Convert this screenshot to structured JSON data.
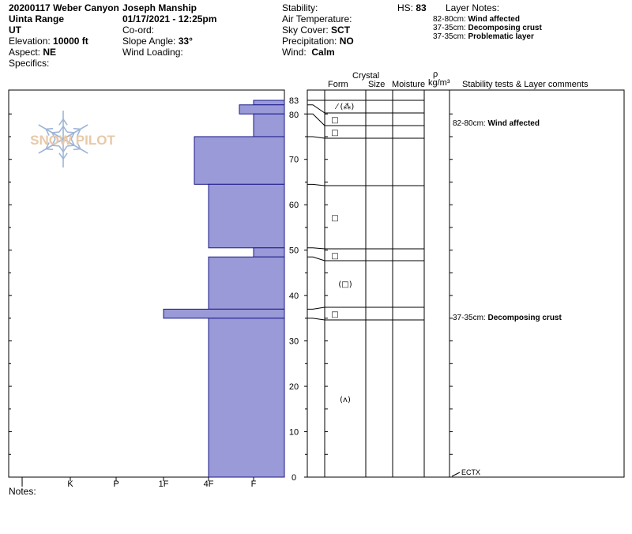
{
  "header": {
    "title": "20200117 Weber Canyon",
    "range": "Uinta Range",
    "state": "UT",
    "elevation_label": "Elevation:",
    "elevation_value": "10000 ft",
    "aspect_label": "Aspect:",
    "aspect_value": "NE",
    "specifics_label": "Specifics:",
    "observer": "Joseph Manship",
    "datetime": "01/17/2021 - 12:25pm",
    "coord_label": "Co-ord:",
    "slope_label": "Slope Angle:",
    "slope_value": "33°",
    "wind_loading_label": "Wind Loading:",
    "stability_label": "Stability:",
    "air_temp_label": "Air Temperature:",
    "sky_label": "Sky Cover:",
    "sky_value": "SCT",
    "precip_label": "Precipitation:",
    "precip_value": "NO",
    "wind_label": "Wind:",
    "wind_value": "Calm",
    "hs_label": "HS:",
    "hs_value": "83",
    "layer_notes_label": "Layer Notes:",
    "layer_notes": [
      {
        "range": "82-80cm:",
        "text": "Wind affected"
      },
      {
        "range": "37-35cm:",
        "text": "Decomposing crust"
      },
      {
        "range": "37-35cm:",
        "text": "Problematic layer"
      }
    ]
  },
  "logo": {
    "text": "SNOW PILOT",
    "color": "#e8c9a8",
    "flake_color": "#9fb6d6"
  },
  "columns": {
    "crystal": "Crystal",
    "form": "Form",
    "size": "Size",
    "moisture": "Moisture",
    "density_symbol": "ρ",
    "density_unit": "kg/m³",
    "stability": "Stability tests & Layer comments"
  },
  "notes_label": "Notes:",
  "chart_data": {
    "type": "bar",
    "title": "",
    "xlabel": "",
    "ylabel": "",
    "ylim": [
      0,
      83
    ],
    "hardness_categories": [
      "I",
      "K",
      "P",
      "1F",
      "4F",
      "F"
    ],
    "depth_ticks": [
      0,
      10,
      20,
      30,
      40,
      50,
      60,
      70,
      80,
      83
    ],
    "bar_color": "#9a9ad8",
    "layers": [
      {
        "top": 83,
        "bottom": 82,
        "hardness": "F-"
      },
      {
        "top": 82,
        "bottom": 80,
        "hardness": "4F+"
      },
      {
        "top": 80,
        "bottom": 75,
        "hardness": "F"
      },
      {
        "top": 75,
        "bottom": 64.5,
        "hardness": "1F+"
      },
      {
        "top": 64.5,
        "bottom": 50.5,
        "hardness": "4F"
      },
      {
        "top": 50.5,
        "bottom": 48.5,
        "hardness": "F"
      },
      {
        "top": 48.5,
        "bottom": 37,
        "hardness": "4F"
      },
      {
        "top": 37,
        "bottom": 35,
        "hardness": "1F"
      },
      {
        "top": 35,
        "bottom": 0,
        "hardness": "4F"
      }
    ],
    "grain_forms": [
      {
        "depth": 82,
        "symbol": "⁄ (⁂)"
      },
      {
        "depth": 78.5,
        "symbol": "□"
      },
      {
        "depth": 76,
        "symbol": "□"
      },
      {
        "depth": 57,
        "symbol": "□"
      },
      {
        "depth": 49,
        "symbol": "□"
      },
      {
        "depth": 42.5,
        "symbol": "(□)"
      },
      {
        "depth": 36,
        "symbol": "□"
      },
      {
        "depth": 17,
        "symbol": "(ʌ)"
      }
    ],
    "comments": [
      {
        "depth": 78.5,
        "range": "82-80cm:",
        "text": "Wind affected"
      },
      {
        "depth": 35,
        "range": "37-35cm:",
        "text": "Decomposing crust"
      }
    ],
    "stability_tests": [
      {
        "depth": 0,
        "label": "ECTX"
      }
    ]
  }
}
